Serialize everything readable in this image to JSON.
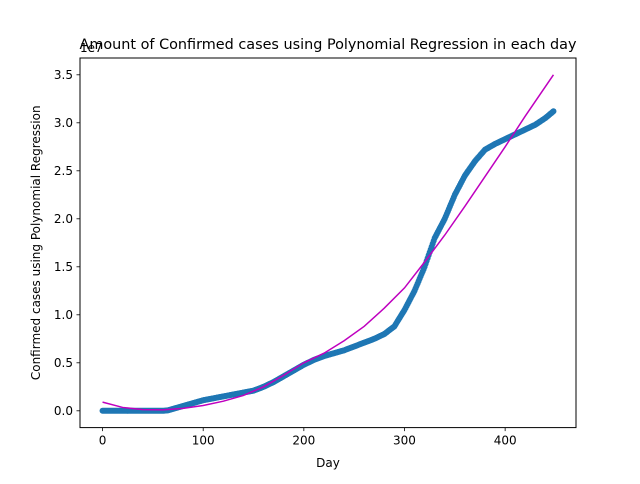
{
  "chart_data": {
    "type": "scatter",
    "title": "Amount of Confirmed cases using Polynomial Regression in each day",
    "xlabel": "Day",
    "ylabel": "Confirmed cases using Polynomial Regression",
    "offset_label": "1e7",
    "xlim": [
      -22.4,
      470.4
    ],
    "ylim": [
      -0.175,
      3.675
    ],
    "x_ticks": [
      {
        "value": 0,
        "label": "0"
      },
      {
        "value": 100,
        "label": "100"
      },
      {
        "value": 200,
        "label": "200"
      },
      {
        "value": 300,
        "label": "300"
      },
      {
        "value": 400,
        "label": "400"
      }
    ],
    "y_ticks": [
      {
        "value": 0.0,
        "label": "0.0"
      },
      {
        "value": 0.5,
        "label": "0.5"
      },
      {
        "value": 1.0,
        "label": "1.0"
      },
      {
        "value": 1.5,
        "label": "1.5"
      },
      {
        "value": 2.0,
        "label": "2.0"
      },
      {
        "value": 2.5,
        "label": "2.5"
      },
      {
        "value": 3.0,
        "label": "3.0"
      },
      {
        "value": 3.5,
        "label": "3.5"
      }
    ],
    "grid": false,
    "series": [
      {
        "kind": "scatter",
        "color": "#1f77b4",
        "x": [
          0,
          20,
          40,
          60,
          65,
          70,
          80,
          90,
          100,
          110,
          120,
          130,
          140,
          150,
          160,
          170,
          180,
          190,
          200,
          210,
          220,
          230,
          240,
          250,
          260,
          270,
          280,
          290,
          300,
          310,
          320,
          330,
          340,
          350,
          360,
          370,
          380,
          390,
          400,
          410,
          420,
          430,
          440,
          448
        ],
        "y": [
          0.0,
          0.0,
          0.0,
          0.0,
          0.005,
          0.02,
          0.05,
          0.08,
          0.11,
          0.13,
          0.15,
          0.17,
          0.19,
          0.21,
          0.25,
          0.3,
          0.36,
          0.42,
          0.48,
          0.53,
          0.57,
          0.6,
          0.63,
          0.67,
          0.71,
          0.75,
          0.8,
          0.88,
          1.05,
          1.25,
          1.5,
          1.8,
          2.0,
          2.25,
          2.45,
          2.6,
          2.72,
          2.78,
          2.83,
          2.88,
          2.93,
          2.98,
          3.05,
          3.12
        ]
      },
      {
        "kind": "line",
        "color": "#bf00bf",
        "x": [
          0,
          20,
          40,
          60,
          80,
          100,
          120,
          140,
          160,
          180,
          200,
          220,
          240,
          260,
          280,
          300,
          320,
          340,
          360,
          380,
          400,
          420,
          448
        ],
        "y": [
          0.09,
          0.035,
          0.012,
          0.01,
          0.025,
          0.055,
          0.1,
          0.16,
          0.25,
          0.37,
          0.5,
          0.6,
          0.73,
          0.88,
          1.07,
          1.28,
          1.55,
          1.83,
          2.13,
          2.44,
          2.75,
          3.07,
          3.5
        ]
      }
    ]
  }
}
